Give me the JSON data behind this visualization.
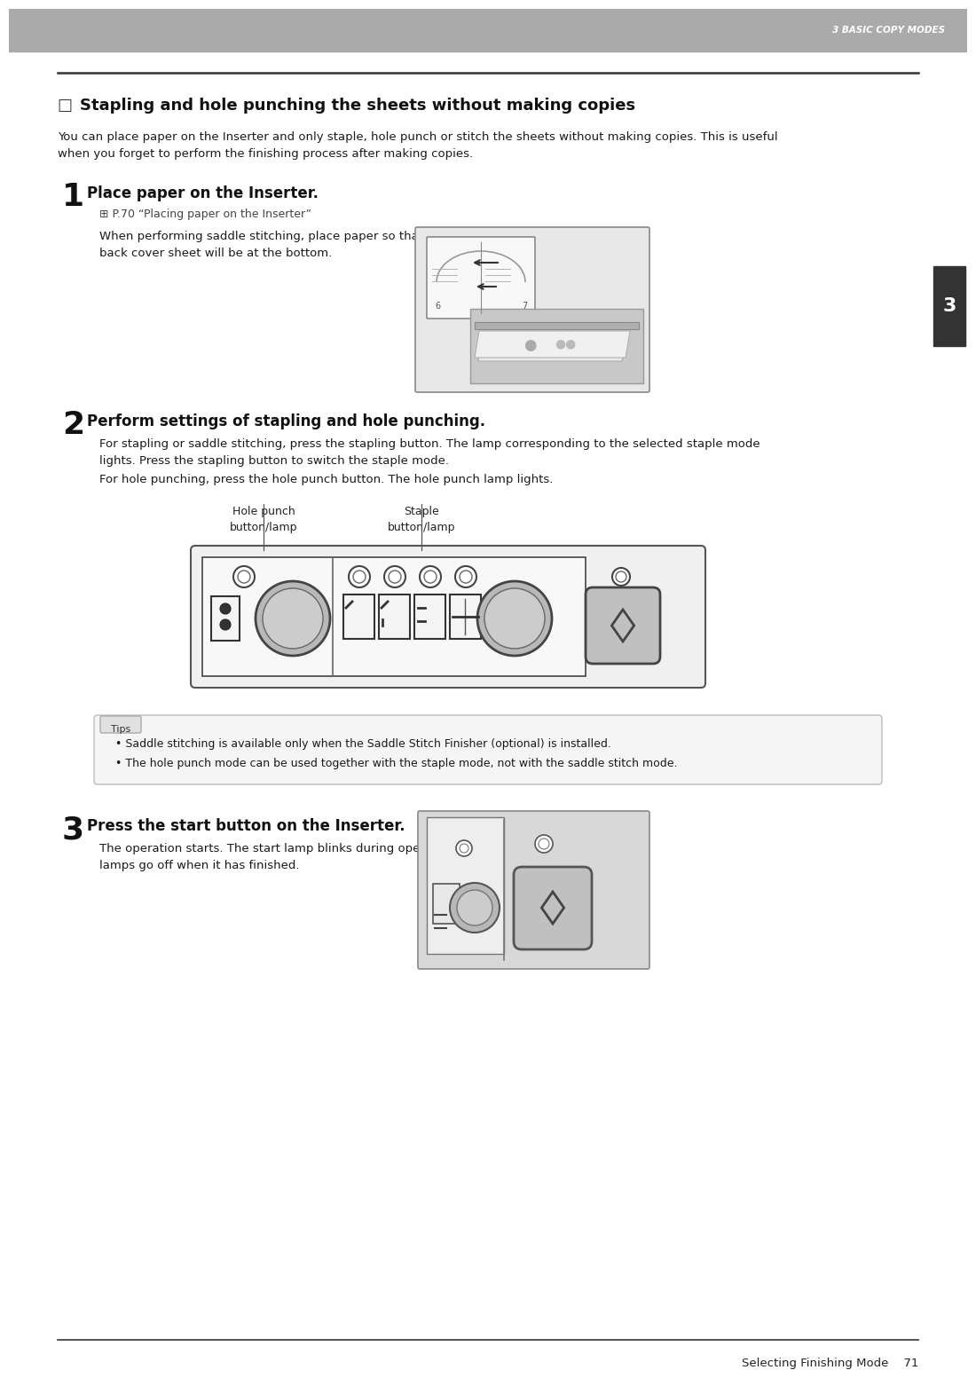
{
  "header_color": "#aaaaaa",
  "header_text": "3 BASIC COPY MODES",
  "header_text_color": "#ffffff",
  "tab_color": "#333333",
  "tab_text": "3",
  "tab_text_color": "#ffffff",
  "title": "Stapling and hole punching the sheets without making copies",
  "intro_text": "You can place paper on the Inserter and only staple, hole punch or stitch the sheets without making copies. This is useful\nwhen you forget to perform the finishing process after making copies.",
  "step1_num": "1",
  "step1_title": "Place paper on the Inserter.",
  "step1_ref": "⊞ P.70 “Placing paper on the Inserter”",
  "step1_body": "When performing saddle stitching, place paper so that the cover or\nback cover sheet will be at the bottom.",
  "step2_num": "2",
  "step2_title": "Perform settings of stapling and hole punching.",
  "step2_body1": "For stapling or saddle stitching, press the stapling button. The lamp corresponding to the selected staple mode\nlights. Press the stapling button to switch the staple mode.",
  "step2_body2": "For hole punching, press the hole punch button. The hole punch lamp lights.",
  "label_hole": "Hole punch\nbutton/lamp",
  "label_staple": "Staple\nbutton/lamp",
  "tips_label": "Tips",
  "tip1": "Saddle stitching is available only when the Saddle Stitch Finisher (optional) is installed.",
  "tip2": "The hole punch mode can be used together with the staple mode, not with the saddle stitch mode.",
  "step3_num": "3",
  "step3_title": "Press the start button on the Inserter.",
  "step3_body": "The operation starts. The start lamp blinks during operation and all the\nlamps go off when it has finished.",
  "footer_text": "Selecting Finishing Mode    71",
  "bg_color": "#ffffff",
  "body_text_color": "#1a1a1a"
}
